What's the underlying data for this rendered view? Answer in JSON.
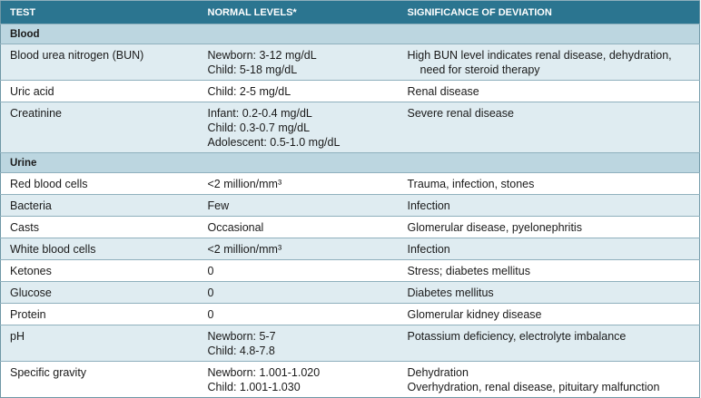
{
  "header": {
    "columns": [
      "TEST",
      "NORMAL LEVELS*",
      "SIGNIFICANCE OF DEVIATION"
    ]
  },
  "sections": [
    {
      "title": "Blood",
      "rows": [
        [
          [
            "Blood urea nitrogen (BUN)"
          ],
          [
            "Newborn: 3-12 mg/dL",
            "Child: 5-18 mg/dL"
          ],
          [
            "High BUN level indicates renal disease, dehydration, need for steroid therapy"
          ]
        ],
        [
          [
            "Uric acid"
          ],
          [
            "Child: 2-5 mg/dL"
          ],
          [
            "Renal disease"
          ]
        ],
        [
          [
            "Creatinine"
          ],
          [
            "Infant: 0.2-0.4 mg/dL",
            "Child: 0.3-0.7 mg/dL",
            "Adolescent: 0.5-1.0 mg/dL"
          ],
          [
            "Severe renal disease"
          ]
        ]
      ]
    },
    {
      "title": "Urine",
      "rows": [
        [
          [
            "Red blood cells"
          ],
          [
            "<2 million/mm³"
          ],
          [
            "Trauma, infection, stones"
          ]
        ],
        [
          [
            "Bacteria"
          ],
          [
            "Few"
          ],
          [
            "Infection"
          ]
        ],
        [
          [
            "Casts"
          ],
          [
            "Occasional"
          ],
          [
            "Glomerular disease, pyelonephritis"
          ]
        ],
        [
          [
            "White blood cells"
          ],
          [
            "<2 million/mm³"
          ],
          [
            "Infection"
          ]
        ],
        [
          [
            "Ketones"
          ],
          [
            "0"
          ],
          [
            "Stress; diabetes mellitus"
          ]
        ],
        [
          [
            "Glucose"
          ],
          [
            "0"
          ],
          [
            "Diabetes mellitus"
          ]
        ],
        [
          [
            "Protein"
          ],
          [
            "0"
          ],
          [
            "Glomerular kidney disease"
          ]
        ],
        [
          [
            "pH"
          ],
          [
            "Newborn: 5-7",
            "Child: 4.8-7.8"
          ],
          [
            "Potassium deficiency, electrolyte imbalance"
          ]
        ],
        [
          [
            "Specific gravity"
          ],
          [
            "Newborn: 1.001-1.020",
            "Child: 1.001-1.030"
          ],
          [
            "Dehydration",
            "Overhydration, renal disease, pituitary malfunction"
          ]
        ]
      ]
    }
  ]
}
